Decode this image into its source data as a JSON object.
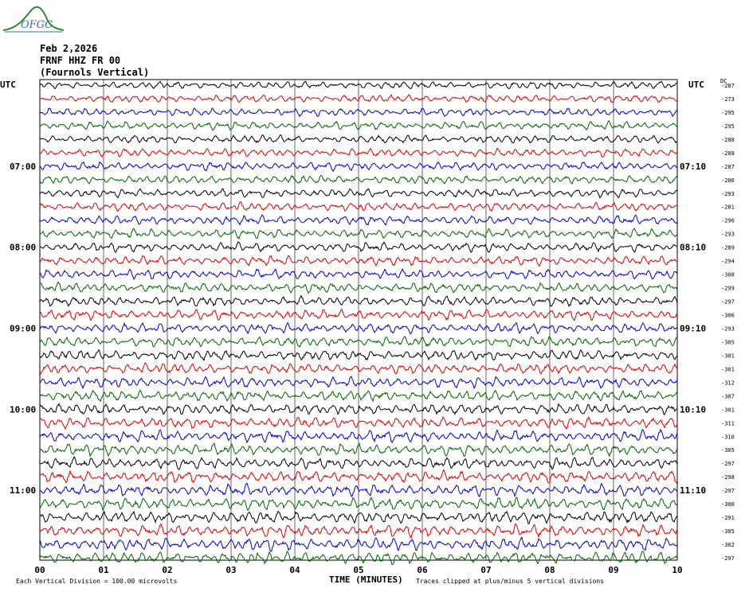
{
  "logo": {
    "text": "OFGC",
    "icon": "mountain-logo-icon"
  },
  "header": {
    "date": "Feb 2,2026",
    "station": "FRNF HHZ FR 00",
    "location": "(Fournols Vertical)"
  },
  "left_axis_label": "UTC",
  "right_axis_label": "UTC",
  "dc_label": "DC",
  "colors": {
    "trace_cycle": [
      "#000000",
      "#e00000",
      "#0000d0",
      "#006400"
    ],
    "grid": "#000000"
  },
  "chart_data": {
    "type": "line",
    "title": "",
    "xlabel": "TIME (MINUTES)",
    "ylabel": "",
    "xlim": [
      0,
      10
    ],
    "x_ticks": [
      "00",
      "01",
      "02",
      "03",
      "04",
      "05",
      "06",
      "07",
      "08",
      "09",
      "10"
    ],
    "left_hour_labels": [
      {
        "row": 6,
        "label": "07:00"
      },
      {
        "row": 12,
        "label": "08:00"
      },
      {
        "row": 18,
        "label": "09:00"
      },
      {
        "row": 24,
        "label": "10:00"
      },
      {
        "row": 30,
        "label": "11:00"
      }
    ],
    "right_hour_labels": [
      {
        "row": 6,
        "label": "07:10"
      },
      {
        "row": 12,
        "label": "08:10"
      },
      {
        "row": 18,
        "label": "09:10"
      },
      {
        "row": 24,
        "label": "10:10"
      },
      {
        "row": 30,
        "label": "11:10"
      }
    ],
    "trace_count": 36,
    "trace_dc_offsets": [
      -287,
      -273,
      -295,
      -295,
      -288,
      -288,
      -287,
      -286,
      -293,
      -281,
      -296,
      -293,
      -289,
      -294,
      -308,
      -299,
      -297,
      -306,
      -293,
      -305,
      -301,
      -301,
      -312,
      -307,
      -301,
      -311,
      -310,
      -305,
      -297,
      -298,
      -297,
      -300,
      -291,
      -305,
      -302,
      -297
    ],
    "grid": true,
    "footer_left": "Each Vertical Division = 100.00 microvolts",
    "footer_right": "Traces clipped at plus/minus 5 vertical divisions"
  }
}
